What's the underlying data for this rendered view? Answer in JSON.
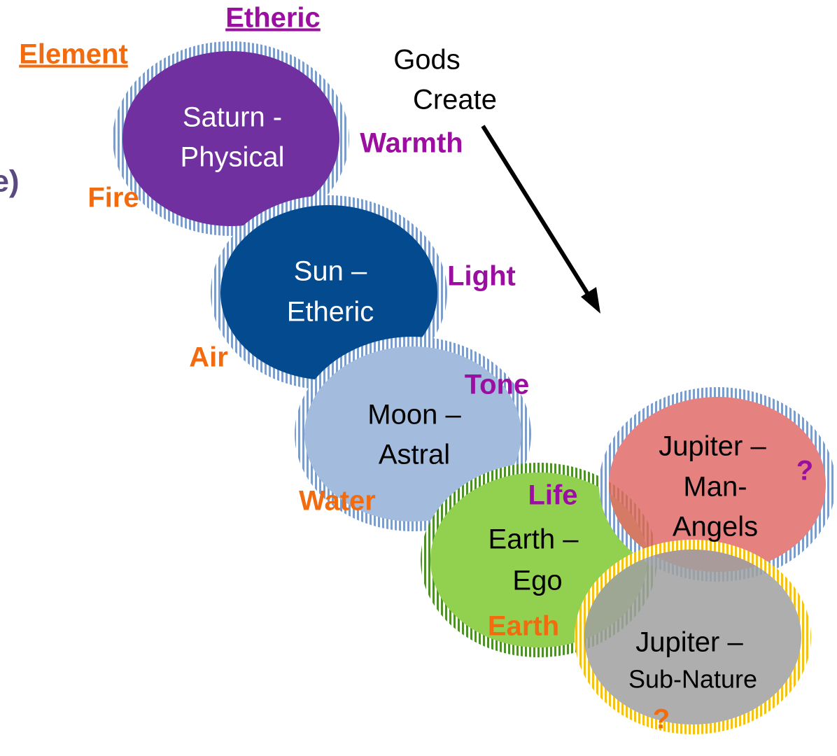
{
  "headers": {
    "etheric": "Etheric",
    "element": "Element",
    "partial": "e)"
  },
  "gods": [
    "Gods",
    "Create"
  ],
  "planets": [
    {
      "lines": [
        "Saturn -",
        "Physical"
      ]
    },
    {
      "lines": [
        "Sun –",
        "Etheric"
      ]
    },
    {
      "lines": [
        "Moon –",
        "Astral"
      ]
    },
    {
      "lines": [
        "Earth –",
        "Ego"
      ]
    },
    {
      "lines": [
        "Jupiter –",
        "Man-",
        "Angels"
      ]
    },
    {
      "lines": [
        "Jupiter –",
        "Sub-Nature"
      ]
    }
  ],
  "ethers": [
    "Warmth",
    "Light",
    "Tone",
    "Life",
    "?"
  ],
  "elements": [
    "Fire",
    "Air",
    "Water",
    "Earth",
    "?"
  ]
}
